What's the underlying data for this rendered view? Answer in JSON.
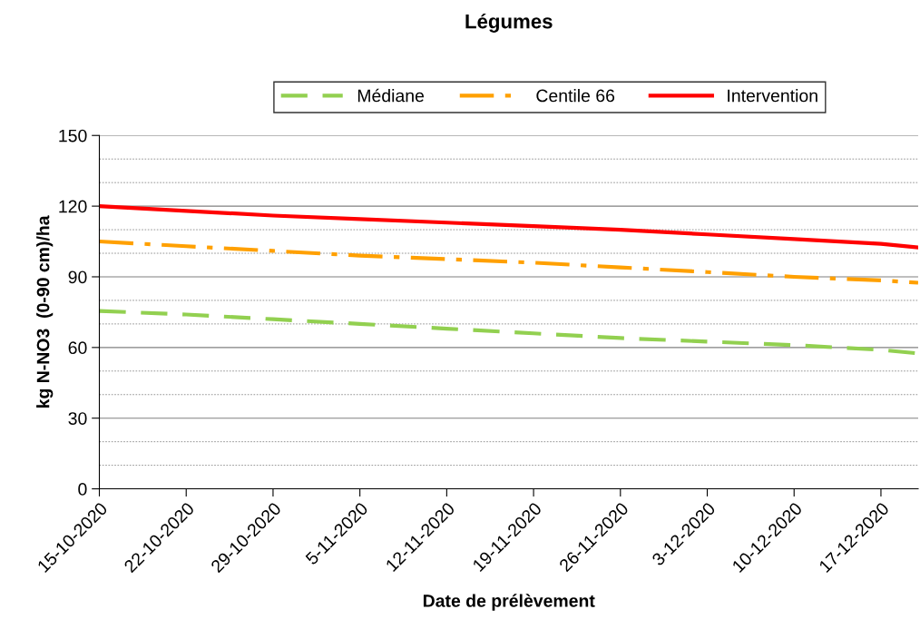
{
  "chart_data": {
    "type": "line",
    "title": "Légumes",
    "xlabel": "Date de prélèvement",
    "ylabel": "kg N-NO3  (0-90 cm)/ha",
    "x": [
      "2020-10-15",
      "2020-10-22",
      "2020-10-29",
      "2020-11-05",
      "2020-11-12",
      "2020-11-19",
      "2020-11-26",
      "2020-12-03",
      "2020-12-10",
      "2020-12-17",
      "2020-12-20"
    ],
    "series": [
      {
        "name": "Médiane",
        "color": "#92d050",
        "line_style": "dashed",
        "values": [
          75.5,
          74,
          72,
          70,
          68,
          66,
          64,
          62.5,
          61,
          59,
          57.5
        ]
      },
      {
        "name": "Centile 66",
        "color": "#ffa000",
        "line_style": "dashdot",
        "values": [
          105,
          103,
          101,
          99,
          97.5,
          96,
          94,
          92,
          90,
          88.5,
          87.5
        ]
      },
      {
        "name": "Intervention",
        "color": "#ff0000",
        "line_style": "solid",
        "values": [
          120,
          118,
          116,
          114.5,
          113,
          111.5,
          110,
          108,
          106,
          104,
          102.5
        ]
      }
    ],
    "xlim": [
      "2020-10-15",
      "2020-12-20"
    ],
    "xticks": [
      {
        "value": "2020-10-15",
        "label": "15-10-2020"
      },
      {
        "value": "2020-10-22",
        "label": "22-10-2020"
      },
      {
        "value": "2020-10-29",
        "label": "29-10-2020"
      },
      {
        "value": "2020-11-05",
        "label": "5-11-2020"
      },
      {
        "value": "2020-11-12",
        "label": "12-11-2020"
      },
      {
        "value": "2020-11-19",
        "label": "19-11-2020"
      },
      {
        "value": "2020-11-26",
        "label": "26-11-2020"
      },
      {
        "value": "2020-12-03",
        "label": "3-12-2020"
      },
      {
        "value": "2020-12-10",
        "label": "10-12-2020"
      },
      {
        "value": "2020-12-17",
        "label": "17-12-2020"
      }
    ],
    "ylim": [
      0,
      150
    ],
    "yticks": [
      0,
      {
        "value": 10,
        "label": null
      },
      {
        "value": 20,
        "label": null
      },
      30,
      {
        "value": 40,
        "label": null
      },
      {
        "value": 50,
        "label": null
      },
      60,
      {
        "value": 70,
        "label": null
      },
      {
        "value": 80,
        "label": null
      },
      90,
      {
        "value": 100,
        "label": null
      },
      {
        "value": 110,
        "label": null
      },
      120,
      {
        "value": 130,
        "label": null
      },
      {
        "value": 140,
        "label": null
      },
      150
    ],
    "grid": "y",
    "legend": "top",
    "marker": "none"
  }
}
